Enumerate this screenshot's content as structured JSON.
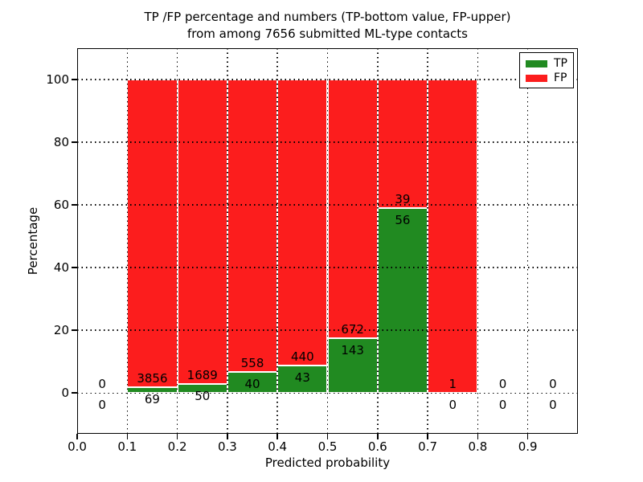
{
  "title": {
    "line1": "TP /FP percentage and numbers (TP-bottom value, FP-upper)",
    "line2": "from among 7656 submitted ML-type contacts"
  },
  "axes": {
    "ylabel": "Percentage",
    "xlabel": "Predicted probability",
    "yticks": [
      0,
      20,
      40,
      60,
      80,
      100
    ],
    "xticks": [
      "0.0",
      "0.1",
      "0.2",
      "0.3",
      "0.4",
      "0.5",
      "0.6",
      "0.7",
      "0.8",
      "0.9"
    ]
  },
  "legend": {
    "items": [
      {
        "label": "TP",
        "color": "#218a21"
      },
      {
        "label": "FP",
        "color": "#fc1d1d"
      }
    ]
  },
  "colors": {
    "tp_green": "#218a21",
    "fp_red": "#fc1d1d",
    "grid": "#000000",
    "background": "#ffffff"
  },
  "chart_data": {
    "type": "bar",
    "stacked": true,
    "title": "TP /FP percentage and numbers (TP-bottom value, FP-upper) from among 7656 submitted ML-type contacts",
    "xlabel": "Predicted probability",
    "ylabel": "Percentage",
    "xlim": [
      0.0,
      1.0
    ],
    "ylim": [
      -13,
      110
    ],
    "grid": "dotted",
    "legend_position": "upper right",
    "series_names": [
      "TP",
      "FP"
    ],
    "bins": [
      {
        "x0": 0.0,
        "x1": 0.1,
        "tp_count": 0,
        "fp_count": 0,
        "tp_pct": 0,
        "fp_pct": 0
      },
      {
        "x0": 0.1,
        "x1": 0.2,
        "tp_count": 69,
        "fp_count": 3856,
        "tp_pct": 1.758,
        "fp_pct": 98.242
      },
      {
        "x0": 0.2,
        "x1": 0.3,
        "tp_count": 50,
        "fp_count": 1689,
        "tp_pct": 2.875,
        "fp_pct": 97.125
      },
      {
        "x0": 0.3,
        "x1": 0.4,
        "tp_count": 40,
        "fp_count": 558,
        "tp_pct": 6.689,
        "fp_pct": 93.311
      },
      {
        "x0": 0.4,
        "x1": 0.5,
        "tp_count": 43,
        "fp_count": 440,
        "tp_pct": 8.903,
        "fp_pct": 91.097
      },
      {
        "x0": 0.5,
        "x1": 0.6,
        "tp_count": 143,
        "fp_count": 672,
        "tp_pct": 17.546,
        "fp_pct": 82.454
      },
      {
        "x0": 0.6,
        "x1": 0.7,
        "tp_count": 56,
        "fp_count": 39,
        "tp_pct": 58.947,
        "fp_pct": 41.053
      },
      {
        "x0": 0.7,
        "x1": 0.8,
        "tp_count": 0,
        "fp_count": 1,
        "tp_pct": 0,
        "fp_pct": 100
      },
      {
        "x0": 0.8,
        "x1": 0.9,
        "tp_count": 0,
        "fp_count": 0,
        "tp_pct": 0,
        "fp_pct": 0
      },
      {
        "x0": 0.9,
        "x1": 1.0,
        "tp_count": 0,
        "fp_count": 0,
        "tp_pct": 0,
        "fp_pct": 0
      }
    ]
  }
}
